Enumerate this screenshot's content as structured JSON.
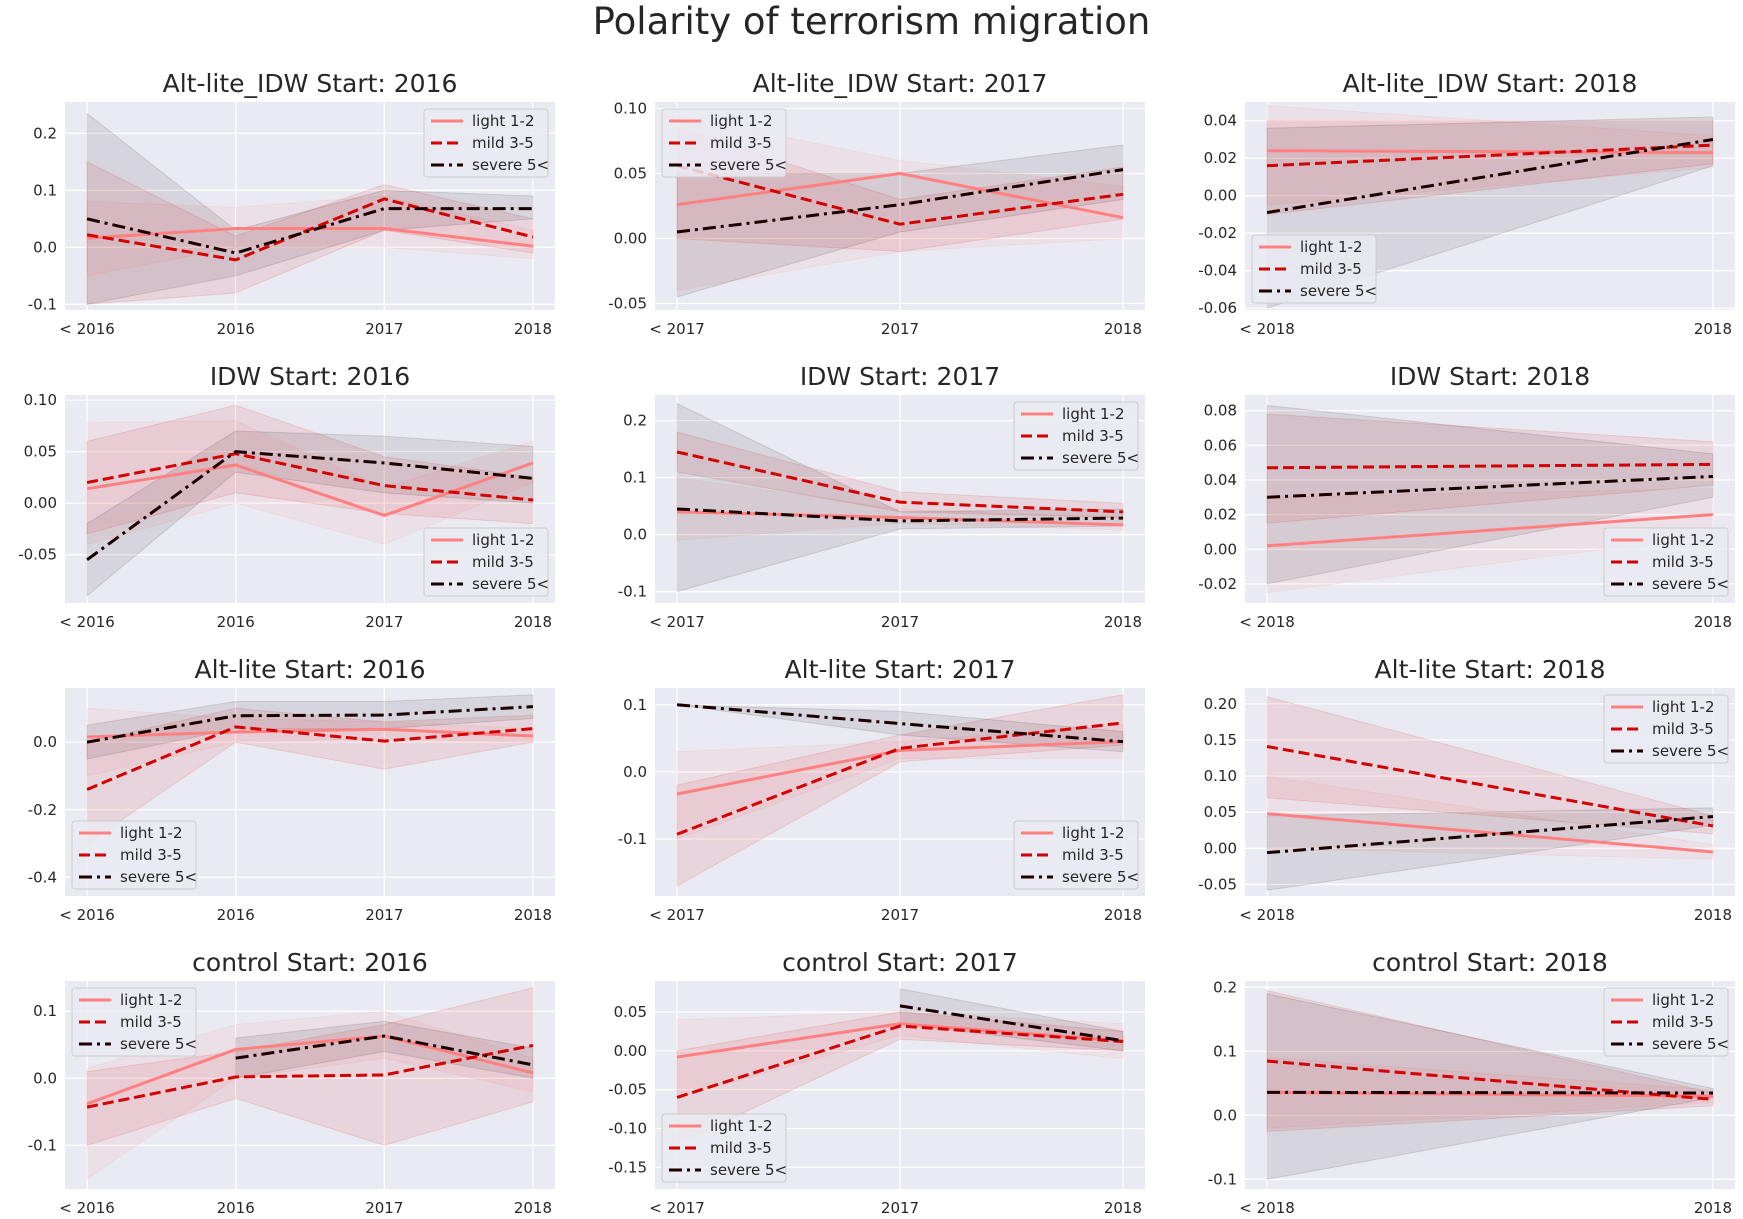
{
  "figure": {
    "title": "Polarity of terrorism migration"
  },
  "colors": {
    "background": "#ffffff",
    "plot_background": "#eaeaf2",
    "grid": "#ffffff",
    "text": "#262626",
    "light": "#ff8080",
    "mild": "#d40000",
    "severe": "#1a0000"
  },
  "legend_entries": [
    {
      "key": "light",
      "label": "light 1-2",
      "style": "solid"
    },
    {
      "key": "mild",
      "label": "mild 3-5",
      "style": "dashed"
    },
    {
      "key": "severe",
      "label": "severe 5<",
      "style": "dashdot"
    }
  ],
  "chart_data": [
    {
      "type": "line",
      "title": "Alt-lite_IDW Start: 2016",
      "legend": "top-right",
      "x": [
        "< 2016",
        "2016",
        "2017",
        "2018"
      ],
      "ylim": [
        -0.11,
        0.255
      ],
      "yticks": [
        "-0.1",
        "0.0",
        "0.1",
        "0.2"
      ],
      "ytick_values": [
        -0.1,
        0,
        0.1,
        0.2
      ],
      "series": [
        {
          "key": "light",
          "values": [
            0.016,
            0.033,
            0.033,
            0.002
          ],
          "band_low": [
            -0.05,
            0.0,
            0.0,
            -0.02
          ],
          "band_high": [
            0.08,
            0.07,
            0.09,
            0.03
          ]
        },
        {
          "key": "mild",
          "values": [
            0.022,
            -0.022,
            0.085,
            0.018
          ],
          "band_low": [
            -0.1,
            -0.08,
            0.03,
            -0.01
          ],
          "band_high": [
            0.15,
            0.02,
            0.11,
            0.05
          ]
        },
        {
          "key": "severe",
          "values": [
            0.05,
            -0.01,
            0.068,
            0.068
          ],
          "band_low": [
            -0.1,
            -0.05,
            0.03,
            0.05
          ],
          "band_high": [
            0.235,
            0.03,
            0.1,
            0.09
          ]
        }
      ]
    },
    {
      "type": "line",
      "title": "Alt-lite_IDW Start: 2017",
      "legend": "top-left",
      "x": [
        "< 2017",
        "2017",
        "2018"
      ],
      "ylim": [
        -0.055,
        0.105
      ],
      "yticks": [
        "-0.05",
        "0.00",
        "0.05",
        "0.10"
      ],
      "ytick_values": [
        -0.05,
        0,
        0.05,
        0.1
      ],
      "series": [
        {
          "key": "light",
          "values": [
            0.026,
            0.05,
            0.016
          ],
          "band_low": [
            -0.04,
            -0.01,
            0.0
          ],
          "band_high": [
            0.095,
            0.06,
            0.04
          ]
        },
        {
          "key": "mild",
          "values": [
            0.056,
            0.011,
            0.034
          ],
          "band_low": [
            0.0,
            -0.01,
            0.015
          ],
          "band_high": [
            0.085,
            0.03,
            0.055
          ]
        },
        {
          "key": "severe",
          "values": [
            0.005,
            0.026,
            0.053
          ],
          "band_low": [
            -0.045,
            0.005,
            0.03
          ],
          "band_high": [
            0.05,
            0.05,
            0.072
          ]
        }
      ]
    },
    {
      "type": "line",
      "title": "Alt-lite_IDW Start: 2018",
      "legend": "bottom-left",
      "x": [
        "< 2018",
        "2018"
      ],
      "ylim": [
        -0.061,
        0.05
      ],
      "yticks": [
        "-0.06",
        "-0.04",
        "-0.02",
        "0.00",
        "0.02",
        "0.04"
      ],
      "ytick_values": [
        -0.06,
        -0.04,
        -0.02,
        0,
        0.02,
        0.04
      ],
      "series": [
        {
          "key": "light",
          "values": [
            0.024,
            0.023
          ],
          "band_low": [
            -0.005,
            0.015
          ],
          "band_high": [
            0.048,
            0.032
          ]
        },
        {
          "key": "mild",
          "values": [
            0.016,
            0.027
          ],
          "band_low": [
            -0.01,
            0.017
          ],
          "band_high": [
            0.04,
            0.04
          ]
        },
        {
          "key": "severe",
          "values": [
            -0.009,
            0.03
          ],
          "band_low": [
            -0.06,
            0.016
          ],
          "band_high": [
            0.036,
            0.042
          ]
        }
      ]
    },
    {
      "type": "line",
      "title": "IDW Start: 2016",
      "legend": "bottom-right",
      "x": [
        "< 2016",
        "2016",
        "2017",
        "2018"
      ],
      "ylim": [
        -0.097,
        0.105
      ],
      "yticks": [
        "-0.05",
        "0.00",
        "0.05",
        "0.10"
      ],
      "ytick_values": [
        -0.05,
        0,
        0.05,
        0.1
      ],
      "series": [
        {
          "key": "light",
          "values": [
            0.014,
            0.037,
            -0.012,
            0.039
          ],
          "band_low": [
            -0.04,
            0.0,
            -0.04,
            0.02
          ],
          "band_high": [
            0.078,
            0.08,
            0.015,
            0.06
          ]
        },
        {
          "key": "mild",
          "values": [
            0.02,
            0.048,
            0.017,
            0.003
          ],
          "band_low": [
            -0.03,
            0.01,
            -0.01,
            -0.02
          ],
          "band_high": [
            0.06,
            0.095,
            0.045,
            0.025
          ]
        },
        {
          "key": "severe",
          "values": [
            -0.055,
            0.05,
            0.039,
            0.024
          ],
          "band_low": [
            -0.09,
            0.03,
            0.01,
            0.0
          ],
          "band_high": [
            -0.02,
            0.07,
            0.065,
            0.055
          ]
        }
      ]
    },
    {
      "type": "line",
      "title": "IDW Start: 2017",
      "legend": "top-right",
      "x": [
        "< 2017",
        "2017",
        "2018"
      ],
      "ylim": [
        -0.12,
        0.245
      ],
      "yticks": [
        "-0.1",
        "0.0",
        "0.1",
        "0.2"
      ],
      "ytick_values": [
        -0.1,
        0,
        0.1,
        0.2
      ],
      "series": [
        {
          "key": "light",
          "values": [
            0.04,
            0.03,
            0.017
          ],
          "band_low": [
            -0.01,
            0.02,
            0.008
          ],
          "band_high": [
            0.1,
            0.045,
            0.03
          ]
        },
        {
          "key": "mild",
          "values": [
            0.145,
            0.057,
            0.04
          ],
          "band_low": [
            0.11,
            0.04,
            0.03
          ],
          "band_high": [
            0.18,
            0.075,
            0.055
          ]
        },
        {
          "key": "severe",
          "values": [
            0.045,
            0.024,
            0.029
          ],
          "band_low": [
            -0.1,
            0.01,
            0.015
          ],
          "band_high": [
            0.23,
            0.04,
            0.045
          ]
        }
      ]
    },
    {
      "type": "line",
      "title": "IDW Start: 2018",
      "legend": "bottom-right",
      "x": [
        "< 2018",
        "2018"
      ],
      "ylim": [
        -0.031,
        0.089
      ],
      "yticks": [
        "-0.02",
        "0.00",
        "0.02",
        "0.04",
        "0.06",
        "0.08"
      ],
      "ytick_values": [
        -0.02,
        0,
        0.02,
        0.04,
        0.06,
        0.08
      ],
      "series": [
        {
          "key": "light",
          "values": [
            0.002,
            0.02
          ],
          "band_low": [
            -0.025,
            0.008
          ],
          "band_high": [
            0.03,
            0.035
          ]
        },
        {
          "key": "mild",
          "values": [
            0.047,
            0.049
          ],
          "band_low": [
            0.015,
            0.037
          ],
          "band_high": [
            0.078,
            0.062
          ]
        },
        {
          "key": "severe",
          "values": [
            0.03,
            0.042
          ],
          "band_low": [
            -0.02,
            0.03
          ],
          "band_high": [
            0.083,
            0.055
          ]
        }
      ]
    },
    {
      "type": "line",
      "title": "Alt-lite Start: 2016",
      "legend": "bottom-left",
      "x": [
        "< 2016",
        "2016",
        "2017",
        "2018"
      ],
      "ylim": [
        -0.455,
        0.16
      ],
      "yticks": [
        "-0.4",
        "-0.2",
        "0.0"
      ],
      "ytick_values": [
        -0.4,
        -0.2,
        0
      ],
      "series": [
        {
          "key": "light",
          "values": [
            0.015,
            0.03,
            0.038,
            0.018
          ],
          "band_low": [
            -0.1,
            0.0,
            0.01,
            0.0
          ],
          "band_high": [
            0.1,
            0.07,
            0.06,
            0.04
          ]
        },
        {
          "key": "mild",
          "values": [
            -0.14,
            0.045,
            0.003,
            0.04
          ],
          "band_low": [
            -0.3,
            0.0,
            -0.08,
            0.0
          ],
          "band_high": [
            0.0,
            0.1,
            0.06,
            0.08
          ]
        },
        {
          "key": "severe",
          "values": [
            0.0,
            0.078,
            0.08,
            0.105
          ],
          "band_low": [
            -0.05,
            0.04,
            0.04,
            0.07
          ],
          "band_high": [
            0.05,
            0.12,
            0.12,
            0.14
          ]
        }
      ]
    },
    {
      "type": "line",
      "title": "Alt-lite Start: 2017",
      "legend": "bottom-right",
      "x": [
        "< 2017",
        "2017",
        "2018"
      ],
      "ylim": [
        -0.185,
        0.125
      ],
      "yticks": [
        "-0.1",
        "0.0",
        "0.1"
      ],
      "ytick_values": [
        -0.1,
        0,
        0.1
      ],
      "series": [
        {
          "key": "light",
          "values": [
            -0.033,
            0.032,
            0.045
          ],
          "band_low": [
            -0.1,
            0.02,
            0.02
          ],
          "band_high": [
            0.03,
            0.045,
            0.07
          ]
        },
        {
          "key": "mild",
          "values": [
            -0.093,
            0.035,
            0.073
          ],
          "band_low": [
            -0.17,
            0.015,
            0.04
          ],
          "band_high": [
            -0.02,
            0.055,
            0.115
          ]
        },
        {
          "key": "severe",
          "values": [
            0.1,
            0.072,
            0.045
          ],
          "band_low": [
            0.1,
            0.055,
            0.03
          ],
          "band_high": [
            0.1,
            0.09,
            0.06
          ]
        }
      ]
    },
    {
      "type": "line",
      "title": "Alt-lite Start: 2018",
      "legend": "top-right",
      "x": [
        "< 2018",
        "2018"
      ],
      "ylim": [
        -0.066,
        0.222
      ],
      "yticks": [
        "-0.05",
        "0.00",
        "0.05",
        "0.10",
        "0.15",
        "0.20"
      ],
      "ytick_values": [
        -0.05,
        0,
        0.05,
        0.1,
        0.15,
        0.2
      ],
      "series": [
        {
          "key": "light",
          "values": [
            0.048,
            -0.005
          ],
          "band_low": [
            0.0,
            -0.015
          ],
          "band_high": [
            0.1,
            0.005
          ]
        },
        {
          "key": "mild",
          "values": [
            0.141,
            0.031
          ],
          "band_low": [
            0.07,
            0.02
          ],
          "band_high": [
            0.21,
            0.045
          ]
        },
        {
          "key": "severe",
          "values": [
            -0.006,
            0.044
          ],
          "band_low": [
            -0.058,
            0.032
          ],
          "band_high": [
            0.045,
            0.056
          ]
        }
      ]
    },
    {
      "type": "line",
      "title": "control Start: 2016",
      "legend": "top-left",
      "x": [
        "< 2016",
        "2016",
        "2017",
        "2018"
      ],
      "ylim": [
        -0.165,
        0.145
      ],
      "yticks": [
        "-0.1",
        "0.0",
        "0.1"
      ],
      "ytick_values": [
        -0.1,
        0,
        0.1
      ],
      "series": [
        {
          "key": "light",
          "values": [
            -0.038,
            0.043,
            0.063,
            0.008
          ],
          "band_low": [
            -0.15,
            0.0,
            0.03,
            -0.02
          ],
          "band_high": [
            0.015,
            0.08,
            0.1,
            0.03
          ]
        },
        {
          "key": "mild",
          "values": [
            -0.043,
            0.002,
            0.005,
            0.049
          ],
          "band_low": [
            -0.1,
            -0.03,
            -0.1,
            -0.035
          ],
          "band_high": [
            0.01,
            0.04,
            0.08,
            0.135
          ]
        },
        {
          "key": "severe",
          "values": [
            null,
            0.03,
            0.063,
            0.02
          ],
          "band_low": [
            null,
            0.0,
            0.04,
            0.0
          ],
          "band_high": [
            null,
            0.06,
            0.085,
            0.045
          ]
        }
      ]
    },
    {
      "type": "line",
      "title": "control Start: 2017",
      "legend": "bottom-left",
      "x": [
        "< 2017",
        "2017",
        "2018"
      ],
      "ylim": [
        -0.178,
        0.09
      ],
      "yticks": [
        "-0.15",
        "-0.10",
        "-0.05",
        "0.00",
        "0.05"
      ],
      "ytick_values": [
        -0.15,
        -0.1,
        -0.05,
        0,
        0.05
      ],
      "series": [
        {
          "key": "light",
          "values": [
            -0.008,
            0.035,
            0.013
          ],
          "band_low": [
            -0.06,
            0.02,
            -0.01
          ],
          "band_high": [
            0.04,
            0.05,
            0.035
          ]
        },
        {
          "key": "mild",
          "values": [
            -0.06,
            0.032,
            0.012
          ],
          "band_low": [
            -0.12,
            0.015,
            0.0
          ],
          "band_high": [
            0.0,
            0.05,
            0.025
          ]
        },
        {
          "key": "severe",
          "values": [
            null,
            0.058,
            0.013
          ],
          "band_low": [
            null,
            0.035,
            0.0
          ],
          "band_high": [
            null,
            0.08,
            0.025
          ]
        }
      ]
    },
    {
      "type": "line",
      "title": "control Start: 2018",
      "legend": "top-right",
      "x": [
        "< 2018",
        "2018"
      ],
      "ylim": [
        -0.115,
        0.21
      ],
      "yticks": [
        "-0.1",
        "0.0",
        "0.1",
        "0.2"
      ],
      "ytick_values": [
        -0.1,
        0,
        0.1,
        0.2
      ],
      "series": [
        {
          "key": "light",
          "values": [
            0.036,
            0.03
          ],
          "band_low": [
            -0.02,
            0.02
          ],
          "band_high": [
            0.09,
            0.04
          ]
        },
        {
          "key": "mild",
          "values": [
            0.085,
            0.025
          ],
          "band_low": [
            -0.025,
            0.015
          ],
          "band_high": [
            0.195,
            0.035
          ]
        },
        {
          "key": "severe",
          "values": [
            0.036,
            0.035
          ],
          "band_low": [
            -0.1,
            0.028
          ],
          "band_high": [
            0.19,
            0.042
          ]
        }
      ]
    }
  ]
}
